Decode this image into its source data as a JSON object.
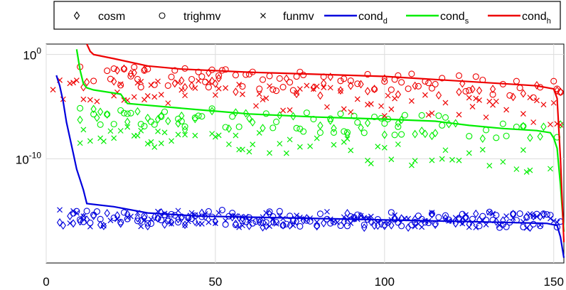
{
  "chart_data": {
    "type": "scatter",
    "x_range": [
      0,
      153
    ],
    "y_range_log10": [
      -20,
      1
    ],
    "y_scale": "log",
    "grid": true,
    "legend_placement": "top, outside",
    "x_ticks": [
      {
        "value": 0,
        "label": "0"
      },
      {
        "value": 50,
        "label": "50"
      },
      {
        "value": 100,
        "label": "100"
      },
      {
        "value": 150,
        "label": "150"
      }
    ],
    "y_ticks": [
      {
        "value_log10": 0,
        "base": "10",
        "exp": "0"
      },
      {
        "value_log10": -10,
        "base": "10",
        "exp": "-10"
      }
    ],
    "legend": [
      {
        "kind": "marker",
        "marker": "diamond",
        "label": "cosm",
        "sub": ""
      },
      {
        "kind": "marker",
        "marker": "circle",
        "label": "trighmv",
        "sub": ""
      },
      {
        "kind": "marker",
        "marker": "cross",
        "label": "funmv",
        "sub": ""
      },
      {
        "kind": "line",
        "color": "#0000dd",
        "label": "cond",
        "sub": "d"
      },
      {
        "kind": "line",
        "color": "#00ee00",
        "label": "cond",
        "sub": "s"
      },
      {
        "kind": "line",
        "color": "#ee0000",
        "label": "cond",
        "sub": "h"
      }
    ],
    "colors": {
      "d": "#0000dd",
      "s": "#00ee00",
      "h": "#ee0000"
    },
    "lines": [
      {
        "name": "cond_d",
        "color": "#0000dd",
        "points_log10": [
          [
            3,
            -2
          ],
          [
            4,
            -3
          ],
          [
            5,
            -4.5
          ],
          [
            6,
            -6.5
          ],
          [
            7,
            -8
          ],
          [
            8,
            -9.5
          ],
          [
            9,
            -11
          ],
          [
            10,
            -12
          ],
          [
            11,
            -13
          ],
          [
            12,
            -14.3
          ],
          [
            20,
            -14.6
          ],
          [
            30,
            -15.2
          ],
          [
            45,
            -15.5
          ],
          [
            60,
            -15.6
          ],
          [
            75,
            -15.7
          ],
          [
            90,
            -15.8
          ],
          [
            105,
            -15.9
          ],
          [
            120,
            -16.0
          ],
          [
            135,
            -16.1
          ],
          [
            148,
            -16.2
          ],
          [
            151,
            -16.4
          ],
          [
            152,
            -17.5
          ],
          [
            153,
            -19.5
          ]
        ]
      },
      {
        "name": "cond_s",
        "color": "#00ee00",
        "points_log10": [
          [
            9,
            0.5
          ],
          [
            10,
            -1.5
          ],
          [
            11,
            -2.8
          ],
          [
            12,
            -3.2
          ],
          [
            14,
            -3.4
          ],
          [
            22,
            -3.8
          ],
          [
            24,
            -4.7
          ],
          [
            45,
            -5.3
          ],
          [
            60,
            -5.7
          ],
          [
            80,
            -6.0
          ],
          [
            100,
            -6.2
          ],
          [
            115,
            -6.4
          ],
          [
            125,
            -6.8
          ],
          [
            135,
            -7.1
          ],
          [
            145,
            -7.3
          ],
          [
            149,
            -7.5
          ],
          [
            150,
            -8.0
          ],
          [
            151,
            -9.0
          ],
          [
            152,
            -12.5
          ],
          [
            153,
            -17.0
          ]
        ]
      },
      {
        "name": "cond_h",
        "color": "#ee0000",
        "points_log10": [
          [
            12,
            1
          ],
          [
            13,
            0.3
          ],
          [
            14,
            0
          ],
          [
            20,
            -0.4
          ],
          [
            30,
            -1.1
          ],
          [
            40,
            -1.4
          ],
          [
            60,
            -1.7
          ],
          [
            80,
            -1.9
          ],
          [
            100,
            -2.1
          ],
          [
            120,
            -2.5
          ],
          [
            135,
            -2.8
          ],
          [
            145,
            -3.0
          ],
          [
            150,
            -3.3
          ],
          [
            151,
            -4.2
          ],
          [
            152,
            -10.0
          ],
          [
            153,
            -18.0
          ]
        ]
      }
    ],
    "scatter_series": [
      {
        "name": "cosm",
        "marker": "diamond",
        "groups": [
          {
            "color": "d",
            "center_log10": [
              -15.8,
              -16.0
            ],
            "start": 4,
            "end": 152,
            "jitter": 0.7,
            "density": 0.6,
            "seed": 11
          },
          {
            "color": "s",
            "center_log10": [
              -6.0,
              -7.3
            ],
            "start": 10,
            "end": 152,
            "jitter": 1.0,
            "density": 0.25,
            "seed": 23
          },
          {
            "color": "h",
            "center_log10": [
              -2.2,
              -3.8
            ],
            "start": 10,
            "end": 152,
            "jitter": 1.0,
            "density": 0.25,
            "seed": 37
          }
        ]
      },
      {
        "name": "trighmv",
        "marker": "circle",
        "groups": [
          {
            "color": "d",
            "center_log10": [
              -15.6,
              -15.9
            ],
            "start": 8,
            "end": 152,
            "jitter": 0.8,
            "density": 0.75,
            "seed": 5
          },
          {
            "color": "s",
            "center_log10": [
              -5.8,
              -7.2
            ],
            "start": 10,
            "end": 152,
            "jitter": 1.0,
            "density": 0.45,
            "seed": 17
          },
          {
            "color": "h",
            "center_log10": [
              -2.0,
              -3.2
            ],
            "start": 10,
            "end": 152,
            "jitter": 1.0,
            "density": 0.6,
            "seed": 29
          }
        ]
      },
      {
        "name": "funmv",
        "marker": "cross",
        "groups": [
          {
            "color": "d",
            "center_log10": [
              -15.7,
              -16.0
            ],
            "start": 4,
            "end": 152,
            "jitter": 0.8,
            "density": 0.65,
            "seed": 41
          },
          {
            "color": "s",
            "center_log10": [
              -7.5,
              -10.5
            ],
            "start": 10,
            "end": 152,
            "jitter": 1.2,
            "density": 0.45,
            "seed": 53
          },
          {
            "color": "h",
            "center_log10": [
              -3.0,
              -5.5
            ],
            "start": 2,
            "end": 152,
            "jitter": 1.3,
            "density": 0.55,
            "seed": 67
          }
        ]
      }
    ]
  }
}
